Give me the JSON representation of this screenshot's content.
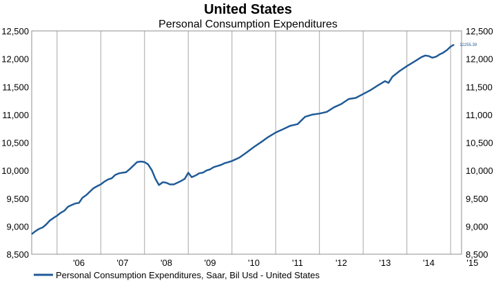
{
  "chart_data": {
    "type": "line",
    "title": "United States",
    "subtitle": "Personal Consumption Expenditures",
    "xlabel": "",
    "ylabel": "",
    "ylim": [
      8500,
      12500
    ],
    "xlim": [
      2005.42,
      2015.25
    ],
    "grid": "vertical",
    "legend_position": "bottom-left",
    "series_color": "#1f5a96",
    "y_ticks": [
      {
        "value": 8500,
        "label": "8,500"
      },
      {
        "value": 9000,
        "label": "9,000"
      },
      {
        "value": 9500,
        "label": "9,500"
      },
      {
        "value": 10000,
        "label": "10,000"
      },
      {
        "value": 10500,
        "label": "10,500"
      },
      {
        "value": 11000,
        "label": "11,000"
      },
      {
        "value": 11500,
        "label": "11,500"
      },
      {
        "value": 12000,
        "label": "12,000"
      },
      {
        "value": 12500,
        "label": "12,500"
      }
    ],
    "x_ticks": [
      {
        "value": 2006.5,
        "label": "'06"
      },
      {
        "value": 2007.5,
        "label": "'07"
      },
      {
        "value": 2008.5,
        "label": "'08"
      },
      {
        "value": 2009.5,
        "label": "'09"
      },
      {
        "value": 2010.5,
        "label": "'10"
      },
      {
        "value": 2011.5,
        "label": "'11"
      },
      {
        "value": 2012.5,
        "label": "'12"
      },
      {
        "value": 2013.5,
        "label": "'13"
      },
      {
        "value": 2014.5,
        "label": "'14"
      },
      {
        "value": 2015.5,
        "label": "'15"
      }
    ],
    "gridlines_x": [
      2006,
      2007,
      2008,
      2009,
      2010,
      2011,
      2012,
      2013,
      2014,
      2015
    ],
    "end_label": "12255.39",
    "series": [
      {
        "name": "Personal Consumption Expenditures, Saar, Bil Usd - United States",
        "x": [
          2005.42,
          2005.5,
          2005.58,
          2005.67,
          2005.75,
          2005.83,
          2005.92,
          2006.0,
          2006.08,
          2006.17,
          2006.25,
          2006.33,
          2006.42,
          2006.5,
          2006.58,
          2006.67,
          2006.75,
          2006.83,
          2006.92,
          2007.0,
          2007.08,
          2007.17,
          2007.25,
          2007.33,
          2007.42,
          2007.5,
          2007.58,
          2007.67,
          2007.75,
          2007.83,
          2007.92,
          2008.0,
          2008.08,
          2008.17,
          2008.25,
          2008.33,
          2008.42,
          2008.5,
          2008.58,
          2008.67,
          2008.75,
          2008.83,
          2008.92,
          2009.0,
          2009.08,
          2009.17,
          2009.25,
          2009.33,
          2009.42,
          2009.5,
          2009.58,
          2009.67,
          2009.75,
          2009.83,
          2009.92,
          2010.0,
          2010.17,
          2010.33,
          2010.5,
          2010.67,
          2010.83,
          2011.0,
          2011.17,
          2011.33,
          2011.5,
          2011.67,
          2011.83,
          2012.0,
          2012.17,
          2012.33,
          2012.5,
          2012.67,
          2012.83,
          2013.0,
          2013.17,
          2013.33,
          2013.5,
          2013.58,
          2013.67,
          2013.83,
          2014.0,
          2014.17,
          2014.33,
          2014.42,
          2014.5,
          2014.58,
          2014.67,
          2014.75,
          2014.83,
          2014.92,
          2015.0,
          2015.08
        ],
        "values": [
          8860,
          8910,
          8950,
          8980,
          9030,
          9100,
          9150,
          9190,
          9240,
          9280,
          9350,
          9380,
          9410,
          9420,
          9510,
          9560,
          9620,
          9680,
          9720,
          9750,
          9800,
          9840,
          9860,
          9920,
          9950,
          9960,
          9970,
          10030,
          10090,
          10150,
          10160,
          10150,
          10110,
          10000,
          9850,
          9740,
          9790,
          9780,
          9750,
          9750,
          9780,
          9810,
          9850,
          9960,
          9880,
          9910,
          9950,
          9960,
          10000,
          10020,
          10060,
          10080,
          10100,
          10130,
          10150,
          10170,
          10230,
          10320,
          10420,
          10510,
          10600,
          10680,
          10740,
          10800,
          10830,
          10960,
          11000,
          11020,
          11050,
          11130,
          11190,
          11280,
          11300,
          11370,
          11440,
          11520,
          11600,
          11570,
          11680,
          11780,
          11870,
          11950,
          12030,
          12060,
          12050,
          12020,
          12040,
          12080,
          12110,
          12160,
          12220,
          12255
        ]
      }
    ]
  }
}
